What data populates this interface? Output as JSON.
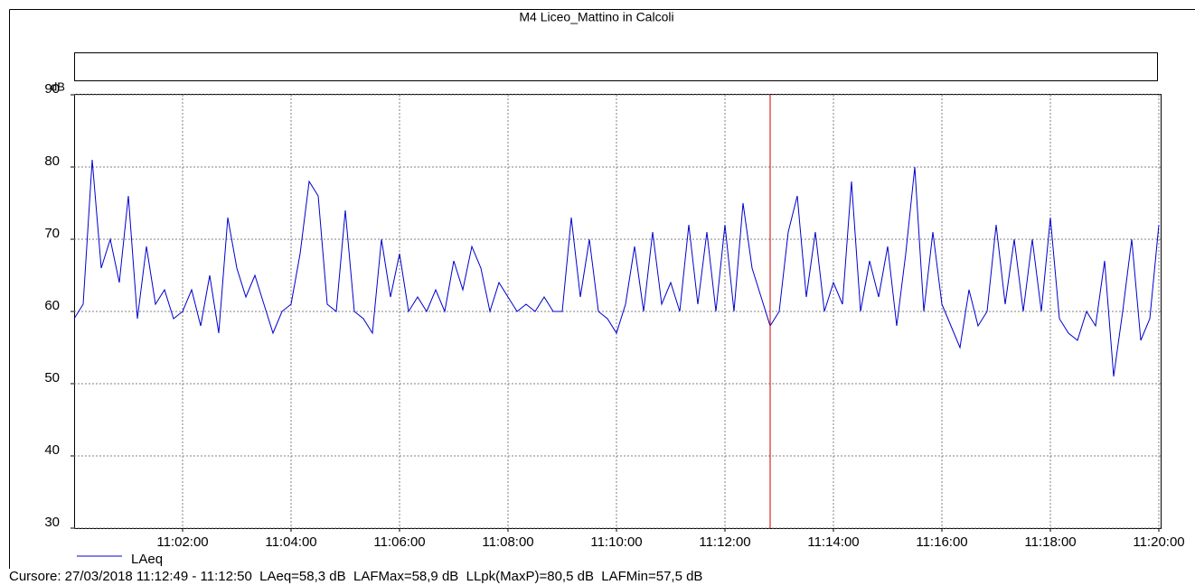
{
  "chart_data": {
    "type": "line",
    "title": "M4 Liceo_Mattino in Calcoli",
    "y_label": "dB",
    "x": [
      "11:00:00",
      "11:00:10",
      "11:00:20",
      "11:00:30",
      "11:00:40",
      "11:00:50",
      "11:01:00",
      "11:01:10",
      "11:01:20",
      "11:01:30",
      "11:01:40",
      "11:01:50",
      "11:02:00",
      "11:02:10",
      "11:02:20",
      "11:02:30",
      "11:02:40",
      "11:02:50",
      "11:03:00",
      "11:03:10",
      "11:03:20",
      "11:03:30",
      "11:03:40",
      "11:03:50",
      "11:04:00",
      "11:04:10",
      "11:04:20",
      "11:04:30",
      "11:04:40",
      "11:04:50",
      "11:05:00",
      "11:05:10",
      "11:05:20",
      "11:05:30",
      "11:05:40",
      "11:05:50",
      "11:06:00",
      "11:06:10",
      "11:06:20",
      "11:06:30",
      "11:06:40",
      "11:06:50",
      "11:07:00",
      "11:07:10",
      "11:07:20",
      "11:07:30",
      "11:07:40",
      "11:07:50",
      "11:08:00",
      "11:08:10",
      "11:08:20",
      "11:08:30",
      "11:08:40",
      "11:08:50",
      "11:09:00",
      "11:09:10",
      "11:09:20",
      "11:09:30",
      "11:09:40",
      "11:09:50",
      "11:10:00",
      "11:10:10",
      "11:10:20",
      "11:10:30",
      "11:10:40",
      "11:10:50",
      "11:11:00",
      "11:11:10",
      "11:11:20",
      "11:11:30",
      "11:11:40",
      "11:11:50",
      "11:12:00",
      "11:12:10",
      "11:12:20",
      "11:12:30",
      "11:12:40",
      "11:12:50",
      "11:13:00",
      "11:13:10",
      "11:13:20",
      "11:13:30",
      "11:13:40",
      "11:13:50",
      "11:14:00",
      "11:14:10",
      "11:14:20",
      "11:14:30",
      "11:14:40",
      "11:14:50",
      "11:15:00",
      "11:15:10",
      "11:15:20",
      "11:15:30",
      "11:15:40",
      "11:15:50",
      "11:16:00",
      "11:16:10",
      "11:16:20",
      "11:16:30",
      "11:16:40",
      "11:16:50",
      "11:17:00",
      "11:17:10",
      "11:17:20",
      "11:17:30",
      "11:17:40",
      "11:17:50",
      "11:18:00",
      "11:18:10",
      "11:18:20",
      "11:18:30",
      "11:18:40",
      "11:18:50",
      "11:19:00",
      "11:19:10",
      "11:19:20",
      "11:19:30",
      "11:19:40",
      "11:19:50",
      "11:20:00"
    ],
    "series": [
      {
        "name": "LAeq",
        "color": "#0000cc",
        "values": [
          59,
          61,
          81,
          66,
          70,
          64,
          76,
          59,
          69,
          61,
          63,
          59,
          60,
          63,
          58,
          65,
          57,
          73,
          66,
          62,
          65,
          61,
          57,
          60,
          61,
          68,
          78,
          76,
          61,
          60,
          74,
          60,
          59,
          57,
          70,
          62,
          68,
          60,
          62,
          60,
          63,
          60,
          67,
          63,
          69,
          66,
          60,
          64,
          62,
          60,
          61,
          60,
          62,
          60,
          60,
          73,
          62,
          70,
          60,
          59,
          57,
          61,
          69,
          60,
          71,
          61,
          64,
          60,
          72,
          61,
          71,
          60,
          72,
          60,
          75,
          66,
          62,
          58,
          60,
          71,
          76,
          62,
          71,
          60,
          64,
          61,
          78,
          60,
          67,
          62,
          69,
          58,
          68,
          80,
          60,
          71,
          61,
          58,
          55,
          63,
          58,
          60,
          72,
          61,
          70,
          60,
          70,
          60,
          73,
          59,
          57,
          56,
          60,
          58,
          67,
          51,
          60,
          70,
          56,
          59,
          72
        ]
      }
    ],
    "xlim": [
      "11:00:00",
      "11:20:02"
    ],
    "xticks": [
      "11:02:00",
      "11:04:00",
      "11:06:00",
      "11:08:00",
      "11:10:00",
      "11:12:00",
      "11:14:00",
      "11:16:00",
      "11:18:00",
      "11:20:00"
    ],
    "ylim": [
      30,
      90
    ],
    "yticks": [
      30,
      40,
      50,
      60,
      70,
      80,
      90
    ],
    "grid": true,
    "cursor": {
      "x": "11:12:50",
      "color": "#cc0000"
    },
    "footer": "Cursore: 27/03/2018 11:12:49 - 11:12:50  LAeq=58,3 dB  LAFMax=58,9 dB  LLpk(MaxP)=80,5 dB  LAFMin=57,5 dB"
  }
}
